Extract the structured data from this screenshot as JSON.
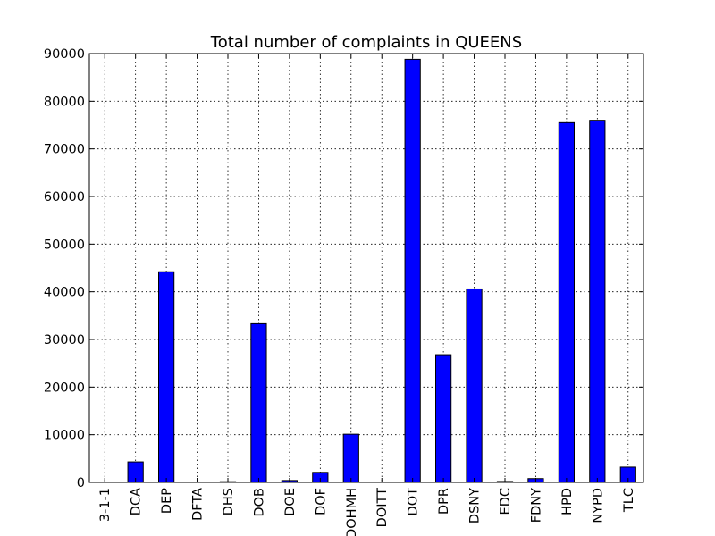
{
  "chart_data": {
    "type": "bar",
    "title": "Total number of complaints in QUEENS",
    "xlabel": "",
    "ylabel": "",
    "categories": [
      "3-1-1",
      "DCA",
      "DEP",
      "DFTA",
      "DHS",
      "DOB",
      "DOE",
      "DOF",
      "DOHMH",
      "DOITT",
      "DOT",
      "DPR",
      "DSNY",
      "EDC",
      "FDNY",
      "HPD",
      "NYPD",
      "TLC"
    ],
    "values": [
      30,
      4300,
      44200,
      40,
      150,
      33300,
      400,
      2100,
      10100,
      30,
      88800,
      26800,
      40600,
      200,
      800,
      75500,
      76000,
      3200
    ],
    "ylim": [
      0,
      90000
    ],
    "yticks": [
      0,
      10000,
      20000,
      30000,
      40000,
      50000,
      60000,
      70000,
      80000,
      90000
    ],
    "grid": true,
    "colors": {
      "bar": "#0000ff"
    }
  }
}
